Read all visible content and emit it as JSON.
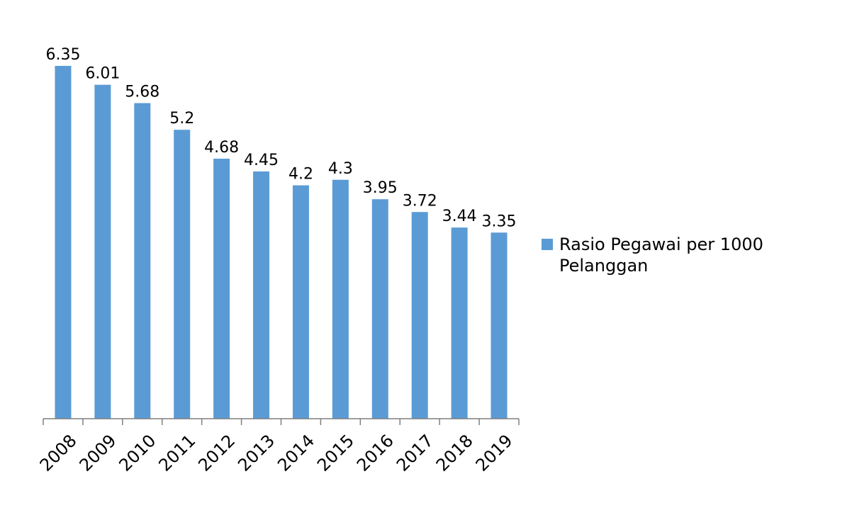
{
  "chart_data": {
    "type": "bar",
    "categories": [
      "2008",
      "2009",
      "2010",
      "2011",
      "2012",
      "2013",
      "2014",
      "2015",
      "2016",
      "2017",
      "2018",
      "2019"
    ],
    "series": [
      {
        "name": "Rasio Pegawai per 1000 Pelanggan",
        "values": [
          6.35,
          6.01,
          5.68,
          5.2,
          4.68,
          4.45,
          4.2,
          4.3,
          3.95,
          3.72,
          3.44,
          3.35
        ],
        "labels": [
          "6.35",
          "6.01",
          "5.68",
          "5.2",
          "4.68",
          "4.45",
          "4.2",
          "4.3",
          "3.95",
          "3.72",
          "3.44",
          "3.35"
        ],
        "color": "#5B9BD5"
      }
    ],
    "ylim": [
      0,
      6.35
    ],
    "grid": false,
    "legend_position": "right",
    "data_labels": true,
    "tick_label_rotation": -45
  },
  "colors": {
    "bar": "#5B9BD5",
    "axis": "#7f7f7f",
    "text": "#000000"
  }
}
